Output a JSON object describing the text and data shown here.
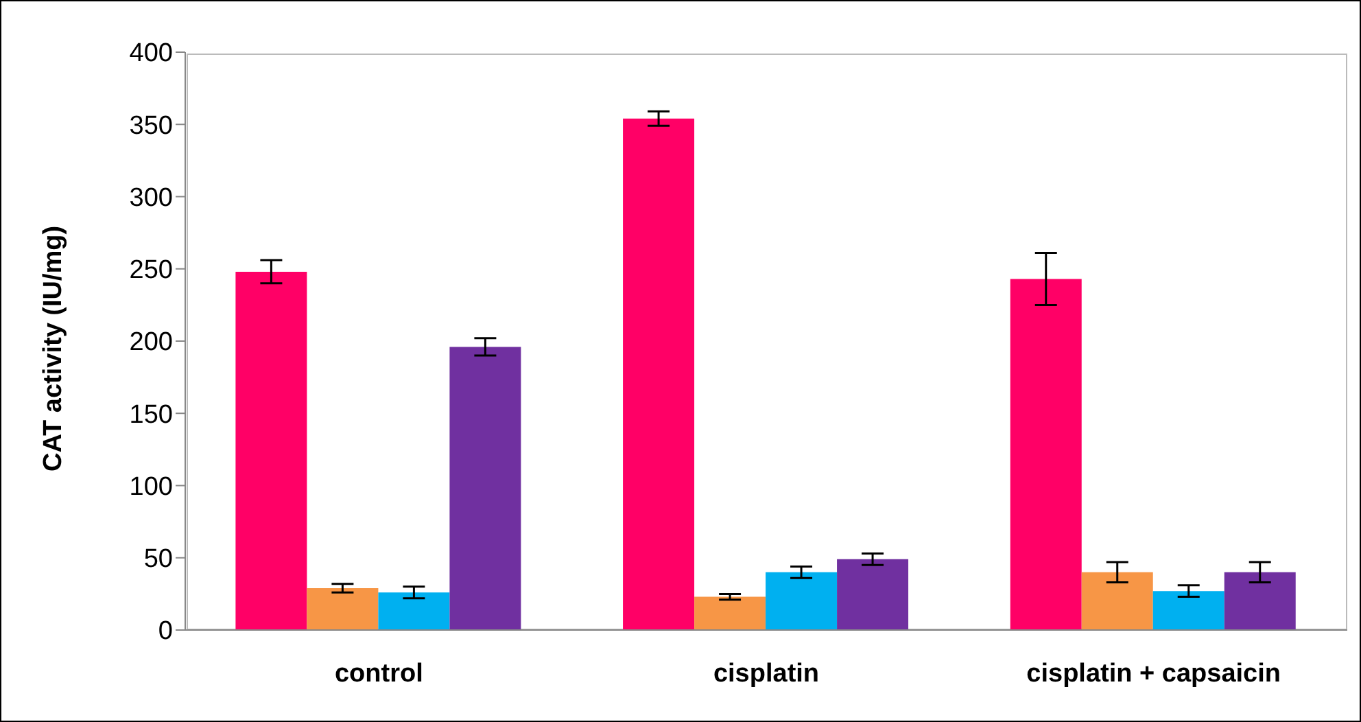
{
  "chart_data": {
    "type": "bar",
    "ylabel": "CAT activity (IU/mg)",
    "categories": [
      "control",
      "cisplatin",
      "cisplatin + capsaicin"
    ],
    "series": [
      {
        "color": "#ff0066",
        "values": [
          248,
          354,
          243
        ],
        "errors": [
          8,
          5,
          18
        ]
      },
      {
        "color": "#f79646",
        "values": [
          29,
          23,
          40
        ],
        "errors": [
          3,
          2,
          7
        ]
      },
      {
        "color": "#00b0f0",
        "values": [
          26,
          40,
          27
        ],
        "errors": [
          4,
          4,
          4
        ]
      },
      {
        "color": "#7030a0",
        "values": [
          196,
          49,
          40
        ],
        "errors": [
          6,
          4,
          7
        ]
      }
    ],
    "ylim": [
      0,
      400
    ],
    "yticks": [
      0,
      50,
      100,
      150,
      200,
      250,
      300,
      350,
      400
    ],
    "grid": false,
    "legend": false
  }
}
